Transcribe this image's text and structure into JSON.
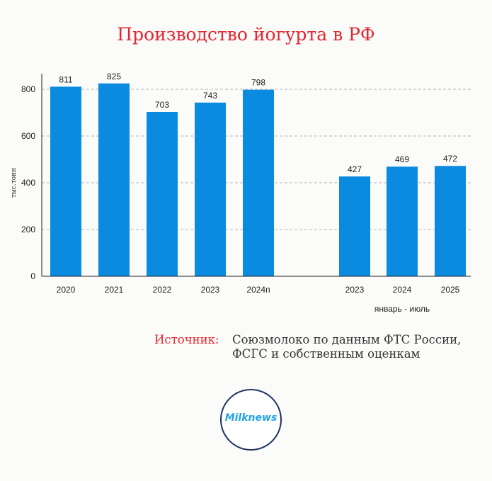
{
  "chart_data": {
    "type": "bar",
    "title": "Производство йогурта в РФ",
    "ylabel": "тыс.тонн",
    "xlabel": "",
    "ylim": [
      0,
      900
    ],
    "yticks": [
      0,
      200,
      400,
      600,
      800
    ],
    "grid": true,
    "bar_color": "#0a8be0",
    "groups": [
      {
        "name": "annual",
        "categories": [
          "2020",
          "2021",
          "2022",
          "2023",
          "2024п"
        ],
        "values": [
          811,
          825,
          703,
          743,
          798
        ],
        "value_labels": [
          "811",
          "825",
          "703",
          "743",
          "798"
        ]
      },
      {
        "name": "january-july",
        "label": "январь - июль",
        "categories": [
          "2023",
          "2024",
          "2025"
        ],
        "values": [
          427,
          469,
          472
        ],
        "value_labels": [
          "427",
          "469",
          "472"
        ]
      }
    ]
  },
  "source": {
    "label": "Источник:",
    "line1": "Союзмолоко по данным ФТС России,",
    "line2": "ФСГС и собственным оценкам"
  },
  "logo": {
    "text": "Milknews"
  },
  "colors": {
    "accent": "#e3262f",
    "bar": "#0a8be0",
    "logo_ring": "#1e3163",
    "logo_text": "#22a3e6"
  }
}
